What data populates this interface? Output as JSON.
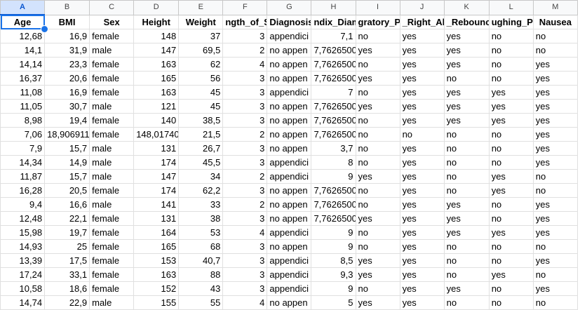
{
  "columns": [
    "A",
    "B",
    "C",
    "D",
    "E",
    "F",
    "G",
    "H",
    "I",
    "J",
    "K",
    "L",
    "M"
  ],
  "headers": [
    "Age",
    "BMI",
    "Sex",
    "Height",
    "Weight",
    "ngth_of_S",
    "Diagnosis",
    "ndix_Diam",
    "gratory_P",
    "_Right_Ab",
    "_Rebounc",
    "ughing_Pa",
    "Nausea"
  ],
  "rows": [
    [
      "12,68",
      "16,9",
      "female",
      "148",
      "37",
      "3",
      "appendici",
      "7,1",
      "no",
      "yes",
      "yes",
      "no",
      "no"
    ],
    [
      "14,1",
      "31,9",
      "male",
      "147",
      "69,5",
      "2",
      "no appen",
      "7,7626500",
      "yes",
      "yes",
      "yes",
      "no",
      "no"
    ],
    [
      "14,14",
      "23,3",
      "female",
      "163",
      "62",
      "4",
      "no appen",
      "7,7626500",
      "no",
      "yes",
      "yes",
      "no",
      "yes"
    ],
    [
      "16,37",
      "20,6",
      "female",
      "165",
      "56",
      "3",
      "no appen",
      "7,7626500",
      "yes",
      "yes",
      "no",
      "no",
      "yes"
    ],
    [
      "11,08",
      "16,9",
      "female",
      "163",
      "45",
      "3",
      "appendici",
      "7",
      "no",
      "yes",
      "yes",
      "yes",
      "yes"
    ],
    [
      "11,05",
      "30,7",
      "male",
      "121",
      "45",
      "3",
      "no appen",
      "7,7626500",
      "yes",
      "yes",
      "yes",
      "yes",
      "yes"
    ],
    [
      "8,98",
      "19,4",
      "female",
      "140",
      "38,5",
      "3",
      "no appen",
      "7,7626500",
      "no",
      "yes",
      "yes",
      "yes",
      "yes"
    ],
    [
      "7,06",
      "18,906911",
      "female",
      "148,01740",
      "21,5",
      "2",
      "no appen",
      "7,7626500",
      "no",
      "no",
      "no",
      "no",
      "yes"
    ],
    [
      "7,9",
      "15,7",
      "male",
      "131",
      "26,7",
      "3",
      "no appen",
      "3,7",
      "no",
      "yes",
      "no",
      "no",
      "yes"
    ],
    [
      "14,34",
      "14,9",
      "male",
      "174",
      "45,5",
      "3",
      "appendici",
      "8",
      "no",
      "yes",
      "no",
      "no",
      "yes"
    ],
    [
      "11,87",
      "15,7",
      "male",
      "147",
      "34",
      "2",
      "appendici",
      "9",
      "yes",
      "yes",
      "no",
      "yes",
      "no"
    ],
    [
      "16,28",
      "20,5",
      "female",
      "174",
      "62,2",
      "3",
      "no appen",
      "7,7626500",
      "no",
      "yes",
      "no",
      "yes",
      "no"
    ],
    [
      "9,4",
      "16,6",
      "male",
      "141",
      "33",
      "2",
      "no appen",
      "7,7626500",
      "no",
      "yes",
      "yes",
      "no",
      "yes"
    ],
    [
      "12,48",
      "22,1",
      "female",
      "131",
      "38",
      "3",
      "no appen",
      "7,7626500",
      "yes",
      "yes",
      "yes",
      "no",
      "yes"
    ],
    [
      "15,98",
      "19,7",
      "female",
      "164",
      "53",
      "4",
      "appendici",
      "9",
      "no",
      "yes",
      "yes",
      "yes",
      "yes"
    ],
    [
      "14,93",
      "25",
      "female",
      "165",
      "68",
      "3",
      "no appen",
      "9",
      "no",
      "yes",
      "no",
      "no",
      "no"
    ],
    [
      "13,39",
      "17,5",
      "female",
      "153",
      "40,7",
      "3",
      "appendici",
      "8,5",
      "yes",
      "yes",
      "no",
      "no",
      "yes"
    ],
    [
      "17,24",
      "33,1",
      "female",
      "163",
      "88",
      "3",
      "appendici",
      "9,3",
      "yes",
      "yes",
      "no",
      "yes",
      "no"
    ],
    [
      "10,58",
      "18,6",
      "female",
      "152",
      "43",
      "3",
      "appendici",
      "9",
      "no",
      "yes",
      "yes",
      "no",
      "yes"
    ],
    [
      "14,74",
      "22,9",
      "male",
      "155",
      "55",
      "4",
      "no appen",
      "5",
      "yes",
      "yes",
      "no",
      "no",
      "no"
    ]
  ],
  "numeric_columns": [
    0,
    1,
    3,
    4,
    5,
    7
  ]
}
